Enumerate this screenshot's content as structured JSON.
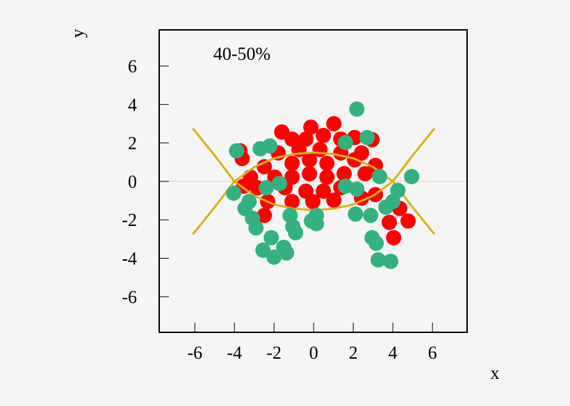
{
  "chart_data": {
    "type": "scatter",
    "annotation": "40-50%",
    "x_label": "x",
    "y_label": "y",
    "xlim": [
      -7.8,
      7.75
    ],
    "ylim": [
      -7.85,
      7.88
    ],
    "xticks": [
      -6,
      -4,
      -2,
      0,
      2,
      4,
      6
    ],
    "yticks": [
      -6,
      -4,
      -2,
      0,
      2,
      4,
      6
    ],
    "zero_line_color": "#e8d890",
    "series": [
      {
        "color": "#ff0000",
        "x": [
          -1.61,
          -0.14,
          1.02,
          2.07,
          2.95,
          -3.61,
          -3.72,
          2.42,
          3.12,
          -3.19,
          -1.09,
          -0.39,
          0.49,
          1.37,
          -1.79,
          -0.74,
          0.32,
          1.37,
          2.07,
          -1.09,
          -0.21,
          0.67,
          -2.49,
          -1.96,
          -1.09,
          -0.21,
          0.67,
          1.54,
          2.6,
          -2.84,
          -1.44,
          -0.39,
          0.49,
          1.37,
          2.42,
          -1.09,
          -0.04,
          1.02,
          -2.32,
          -2.49,
          3.82,
          4.77,
          4.04,
          4.35,
          3.12,
          -3.54
        ],
        "values": [
          2.57,
          2.82,
          3.0,
          2.28,
          2.17,
          1.19,
          1.59,
          1.48,
          0.83,
          0.22,
          2.2,
          2.2,
          2.39,
          2.2,
          1.48,
          1.66,
          1.66,
          1.48,
          1.12,
          0.94,
          1.12,
          0.94,
          0.76,
          0.22,
          0.22,
          0.4,
          0.22,
          0.4,
          0.4,
          -0.33,
          -0.33,
          -0.51,
          -0.51,
          -0.33,
          -0.87,
          -1.05,
          -1.05,
          -0.98,
          -1.05,
          -1.77,
          -2.13,
          -2.06,
          -2.93,
          -1.41,
          -0.69,
          -0.25
        ]
      },
      {
        "color": "#33b27f",
        "x": [
          2.18,
          -3.89,
          -2.7,
          -2.21,
          1.61,
          2.7,
          4.95,
          3.33,
          -2.39,
          -1.72,
          1.61,
          2.18,
          4.25,
          -4.04,
          -3.47,
          -3.26,
          4.0,
          3.65,
          -1.19,
          0.14,
          2.11,
          2.88,
          -3.09,
          -0.11,
          0.14,
          -2.91,
          -1.05,
          -0.91,
          -2.14,
          2.95,
          3.16,
          -2.56,
          -1.51,
          -1.37,
          -2.0,
          3.26,
          3.89
        ],
        "values": [
          3.76,
          1.59,
          1.7,
          1.84,
          2.02,
          2.28,
          0.25,
          0.25,
          -0.33,
          -0.11,
          -0.25,
          -0.4,
          -0.47,
          -0.61,
          -1.41,
          -1.05,
          -1.05,
          -1.34,
          -1.77,
          -1.77,
          -1.7,
          -1.77,
          -1.92,
          -2.06,
          -2.2,
          -2.42,
          -2.35,
          -2.67,
          -2.93,
          -2.93,
          -3.22,
          -3.58,
          -3.43,
          -3.72,
          -3.94,
          -4.08,
          -4.16
        ]
      }
    ],
    "lines": [
      {
        "color": "#dfb012",
        "x": [
          -6.1,
          -5,
          -4,
          -3,
          -2,
          -1,
          0,
          1,
          2,
          3,
          4,
          5,
          6.1
        ],
        "values": [
          -2.75,
          -1.35,
          0,
          0.75,
          1.2,
          1.42,
          1.5,
          1.42,
          1.2,
          0.75,
          0,
          -1.35,
          -2.75
        ]
      },
      {
        "color": "#dfb012",
        "x": [
          -6.1,
          -5,
          -4,
          -3,
          -2,
          -1,
          0,
          1,
          2,
          3,
          4,
          5,
          6.1
        ],
        "values": [
          2.75,
          1.35,
          0,
          -0.75,
          -1.2,
          -1.42,
          -1.5,
          -1.42,
          -1.2,
          -0.75,
          0,
          1.35,
          2.75
        ]
      }
    ]
  }
}
